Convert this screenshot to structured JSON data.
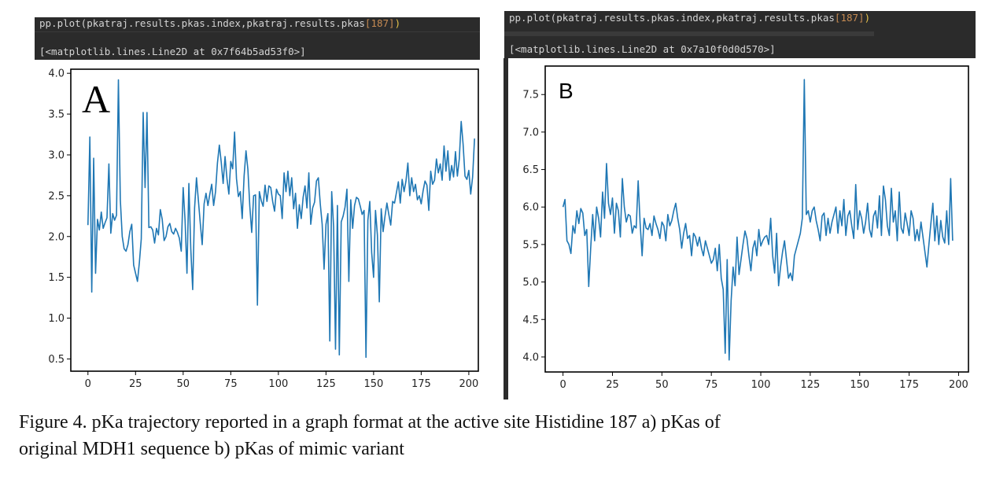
{
  "panel_a": {
    "command_prefix": "pp.plot(pkatraj.results.pkas.index,pkatraj.results.pkas",
    "command_index": "[187]",
    "command_close": ")",
    "output": "[<matplotlib.lines.Line2D at 0x7f64b5ad53f0>]",
    "label": "A"
  },
  "panel_b": {
    "command_prefix": "pp.plot(pkatraj.results.pkas.index,pkatraj.results.pkas",
    "command_index": "[187]",
    "command_close": ")",
    "output": "[<matplotlib.lines.Line2D at 0x7a10f0d0d570>]",
    "label": "B"
  },
  "caption": {
    "line1": "Figure 4. pKa trajectory reported in a graph format at the active site Histidine 187 a) pKas of",
    "line2": "original MDH1 sequence b) pKas of mimic variant"
  },
  "colors": {
    "line": "#1f77b4",
    "terminal": "#2b2b2b"
  },
  "chart_data": [
    {
      "type": "line",
      "title": "",
      "xlabel": "",
      "ylabel": "",
      "xlim": [
        -9,
        205
      ],
      "ylim": [
        0.35,
        4.05
      ],
      "xticks": [
        0,
        25,
        50,
        75,
        100,
        125,
        150,
        175,
        200
      ],
      "yticks": [
        0.5,
        1.0,
        1.5,
        2.0,
        2.5,
        3.0,
        3.5,
        4.0
      ],
      "ytick_labels": [
        "0.5",
        "1.0",
        "1.5",
        "2.0",
        "2.5",
        "3.0",
        "3.5",
        "4.0"
      ],
      "grid": false,
      "series": [
        {
          "color": "#1f77b4",
          "x_start": 0,
          "x_step": 1,
          "values": [
            2.14,
            3.22,
            1.32,
            2.96,
            1.55,
            2.21,
            2.08,
            2.3,
            2.1,
            2.17,
            2.23,
            2.89,
            2.04,
            2.28,
            2.2,
            2.26,
            3.92,
            2.45,
            2.0,
            1.85,
            1.82,
            1.9,
            2.06,
            2.15,
            1.65,
            1.55,
            1.45,
            1.68,
            1.97,
            3.52,
            2.6,
            3.52,
            2.11,
            2.12,
            2.08,
            1.92,
            2.1,
            2.02,
            2.33,
            2.21,
            1.95,
            2.0,
            2.12,
            2.16,
            2.06,
            2.03,
            2.1,
            2.05,
            1.98,
            1.82,
            2.6,
            2.2,
            1.55,
            2.65,
            1.85,
            1.35,
            2.35,
            2.72,
            2.44,
            2.16,
            1.9,
            2.4,
            2.53,
            2.38,
            2.52,
            2.64,
            2.38,
            2.55,
            2.9,
            3.12,
            2.91,
            2.65,
            2.98,
            2.71,
            2.52,
            2.92,
            2.83,
            3.28,
            2.71,
            2.49,
            2.55,
            2.22,
            2.74,
            3.05,
            2.82,
            2.37,
            2.05,
            2.5,
            2.51,
            1.16,
            2.55,
            2.44,
            2.37,
            2.63,
            2.43,
            2.62,
            2.6,
            2.43,
            2.31,
            2.58,
            2.52,
            2.5,
            2.22,
            2.78,
            2.55,
            2.8,
            2.5,
            2.72,
            2.34,
            2.53,
            2.1,
            2.39,
            2.22,
            2.48,
            2.62,
            2.35,
            2.78,
            2.15,
            2.35,
            2.42,
            2.68,
            2.72,
            2.4,
            2.15,
            1.6,
            2.15,
            2.28,
            0.72,
            2.55,
            2.12,
            0.62,
            2.38,
            0.55,
            2.18,
            2.25,
            2.36,
            2.58,
            1.45,
            2.45,
            2.1,
            2.38,
            2.48,
            2.46,
            2.37,
            2.27,
            2.32,
            0.52,
            2.2,
            2.43,
            1.8,
            1.5,
            2.32,
            2.02,
            1.2,
            2.34,
            2.06,
            2.25,
            2.41,
            2.27,
            2.14,
            2.43,
            2.41,
            2.54,
            2.67,
            2.41,
            2.7,
            2.55,
            2.68,
            2.9,
            2.5,
            2.72,
            2.55,
            2.64,
            2.45,
            2.5,
            2.4,
            2.56,
            2.68,
            2.63,
            2.32,
            2.8,
            2.64,
            2.69,
            2.95,
            2.78,
            2.89,
            2.69,
            3.11,
            2.8,
            3.05,
            2.69,
            2.87,
            2.73,
            3.04,
            2.74,
            2.95,
            3.41,
            3.13,
            2.74,
            2.7,
            2.81,
            2.52,
            2.73,
            3.2
          ]
        }
      ]
    },
    {
      "type": "line",
      "title": "",
      "xlabel": "",
      "ylabel": "",
      "xlim": [
        -9,
        205
      ],
      "ylim": [
        3.8,
        7.88
      ],
      "xticks": [
        0,
        25,
        50,
        75,
        100,
        125,
        150,
        175,
        200
      ],
      "yticks": [
        4.0,
        4.5,
        5.0,
        5.5,
        6.0,
        6.5,
        7.0,
        7.5
      ],
      "ytick_labels": [
        "4.0",
        "4.5",
        "5.0",
        "5.5",
        "6.0",
        "6.5",
        "7.0",
        "7.5"
      ],
      "grid": false,
      "series": [
        {
          "color": "#1f77b4",
          "x_start": 0,
          "x_step": 1,
          "values": [
            6.0,
            6.1,
            5.55,
            5.5,
            5.38,
            5.75,
            5.65,
            5.95,
            5.78,
            5.98,
            5.92,
            5.62,
            5.7,
            4.94,
            5.45,
            5.9,
            5.55,
            6.0,
            5.85,
            5.6,
            6.2,
            5.85,
            6.58,
            6.05,
            5.9,
            6.12,
            5.65,
            6.05,
            5.95,
            5.6,
            6.38,
            6.0,
            5.8,
            5.9,
            5.88,
            5.65,
            5.75,
            5.72,
            6.35,
            5.78,
            5.35,
            5.85,
            5.72,
            5.7,
            5.78,
            5.62,
            5.88,
            5.78,
            5.7,
            5.58,
            5.8,
            5.75,
            5.55,
            5.9,
            5.75,
            5.82,
            5.95,
            6.05,
            5.85,
            5.7,
            5.45,
            5.65,
            5.78,
            5.58,
            5.62,
            5.35,
            5.65,
            5.6,
            5.48,
            5.6,
            5.45,
            5.35,
            5.55,
            5.45,
            5.35,
            5.25,
            5.3,
            5.45,
            5.15,
            5.5,
            5.05,
            4.9,
            4.05,
            5.3,
            3.96,
            4.75,
            5.2,
            4.95,
            5.6,
            5.1,
            5.3,
            5.5,
            5.68,
            5.58,
            5.35,
            5.15,
            5.45,
            5.55,
            5.35,
            5.7,
            5.48,
            5.55,
            5.6,
            5.62,
            5.5,
            5.85,
            5.35,
            5.12,
            5.65,
            4.95,
            5.2,
            5.4,
            5.55,
            5.3,
            5.05,
            5.12,
            5.02,
            5.35,
            5.45,
            5.55,
            5.65,
            5.85,
            7.7,
            5.9,
            5.95,
            5.8,
            5.95,
            6.0,
            5.82,
            5.7,
            5.55,
            5.88,
            5.92,
            5.62,
            5.85,
            5.65,
            5.8,
            5.9,
            6.0,
            5.65,
            5.95,
            5.75,
            6.1,
            5.62,
            5.88,
            5.95,
            5.75,
            5.58,
            6.3,
            5.7,
            5.95,
            5.85,
            5.65,
            5.8,
            6.05,
            5.7,
            5.6,
            5.88,
            5.95,
            5.72,
            6.15,
            5.62,
            6.28,
            6.1,
            5.75,
            5.62,
            6.25,
            5.8,
            5.95,
            5.55,
            6.2,
            5.72,
            5.65,
            5.92,
            5.78,
            5.62,
            5.95,
            5.85,
            5.55,
            5.7,
            5.55,
            5.8,
            5.6,
            5.4,
            5.2,
            5.5,
            5.78,
            6.05,
            5.55,
            5.88,
            5.5,
            5.82,
            5.6,
            5.52,
            5.95,
            5.5,
            6.38,
            5.55
          ]
        }
      ]
    }
  ]
}
